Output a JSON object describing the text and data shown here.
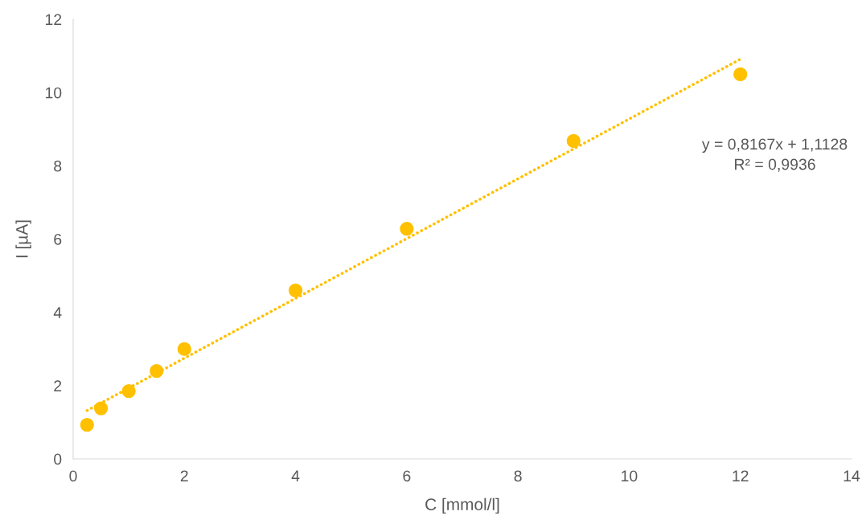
{
  "chart_data": {
    "type": "scatter",
    "xlabel": "C [mmol/l]",
    "ylabel": "I [µA]",
    "xlim": [
      0,
      14
    ],
    "xticks": [
      0,
      2,
      4,
      6,
      8,
      10,
      12,
      14
    ],
    "ylim": [
      0,
      12
    ],
    "yticks": [
      0,
      2,
      4,
      6,
      8,
      10,
      12
    ],
    "grid": false,
    "series": [
      {
        "marker": "circle",
        "color": "#ffc000",
        "x": [
          0.25,
          0.5,
          1,
          1.5,
          2,
          4,
          6,
          9,
          12
        ],
        "values": [
          0.93,
          1.38,
          1.85,
          2.4,
          3.0,
          4.6,
          6.28,
          8.68,
          10.5
        ]
      },
      {
        "type": "line",
        "color": "#ffc000",
        "line_style": "dotted",
        "marker": "none",
        "x": [
          0.25,
          12
        ],
        "values": [
          1.32,
          10.91
        ]
      }
    ],
    "annotations": [
      "y = 0,8167x + 1,1128\nR² = 0,9936"
    ]
  }
}
